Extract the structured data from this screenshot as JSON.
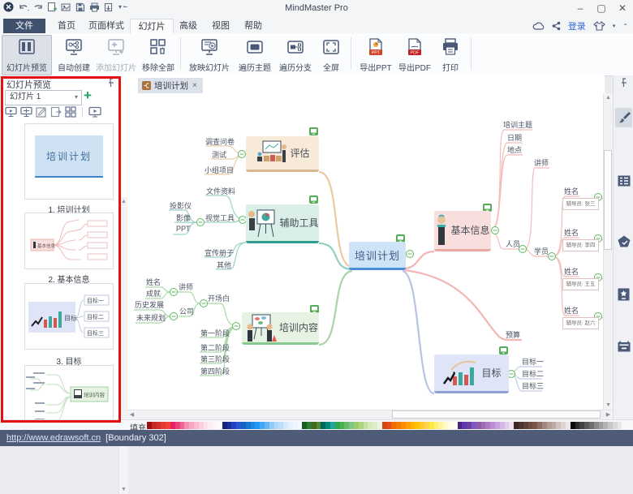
{
  "window": {
    "title": "MindMaster Pro",
    "minimize": "–",
    "maximize": "▢",
    "close": "✕"
  },
  "menu": {
    "file": "文件",
    "tabs": [
      "首页",
      "页面样式",
      "幻灯片",
      "高级",
      "视图",
      "帮助"
    ],
    "login": "登录"
  },
  "ribbon": {
    "preview": "幻灯片预览",
    "auto_create": "自动创建",
    "add_slide": "添加幻灯片",
    "remove_all": "移除全部",
    "play": "放映幻灯片",
    "traverse_topic": "遍历主题",
    "traverse_branch": "遍历分支",
    "fullscreen": "全屏",
    "export_ppt": "导出PPT",
    "export_pdf": "导出PDF",
    "print": "打印",
    "ppt_tag": "PPT",
    "pdf_tag": "PDF"
  },
  "slide_panel": {
    "title": "幻灯片预览",
    "dropdown": "幻灯片 1",
    "slide1_caption": "1. 培训计划",
    "slide2_caption": "2. 基本信息",
    "slide3_caption": "3. 目标"
  },
  "doc_tab": {
    "label": "培训计划",
    "close": "×"
  },
  "map": {
    "center": "培训计划",
    "evaluate": {
      "label": "评估",
      "c1": "调查问卷",
      "c2": "测试",
      "c3": "小组项目"
    },
    "tools": {
      "label": "辅助工具",
      "c1": "文件资料",
      "c2": "视觉工具",
      "c2a": "投影仪",
      "c2b": "影像",
      "c2c": "PPT",
      "c3": "宣传册子",
      "c4": "其他"
    },
    "content": {
      "label": "培训内容",
      "c1": "开场白",
      "c1a": "讲师",
      "c1a1": "姓名",
      "c1a2": "成就",
      "c1b": "公司",
      "c1b1": "历史发展",
      "c1b2": "未来规划",
      "c2": "第一阶段",
      "c3": "第二阶段",
      "c4": "第三阶段",
      "c5": "第四阶段"
    },
    "info": {
      "label": "基本信息",
      "c1": "培训主题",
      "c2": "日期",
      "c3": "地点",
      "c4": "人员",
      "c4a": "讲师",
      "c4b": "学员",
      "name": "姓名",
      "t1": "辅导员: 张三",
      "t2": "辅导员: 李四",
      "t3": "辅导员: 王五",
      "t4": "辅导员: 赵六"
    },
    "budget": "预算",
    "goal": {
      "label": "目标",
      "c1": "目标一",
      "c2": "目标二",
      "c3": "目标三"
    }
  },
  "thumbs": {
    "t1_title": "培训计划",
    "t2_center": "基本信息",
    "t3_label": "目标",
    "t3_c1": "目标一",
    "t3_c2": "目标二",
    "t3_c3": "目标三",
    "t4_label": "培训内容"
  },
  "palette": {
    "label": "填充",
    "colors": [
      "#9c1212",
      "#c62828",
      "#d32f2f",
      "#e53935",
      "#f44336",
      "#e91e63",
      "#ec407a",
      "#f06292",
      "#f48fb1",
      "#f8a6c5",
      "#f8bbd0",
      "#fbcfdd",
      "#fce3ec",
      "#fdeef3",
      "#fef5f8",
      "#fff8fa",
      "#16237e",
      "#1a2f9e",
      "#2141c4",
      "#2a52d4",
      "#1565c0",
      "#1976d2",
      "#1e88e5",
      "#2196f3",
      "#42a5f5",
      "#64b5f6",
      "#90caf9",
      "#aed6fa",
      "#bbdefb",
      "#d4e9fc",
      "#e3f2fd",
      "#eef7fe",
      "#f6fbff",
      "#1b5e20",
      "#2e7d32",
      "#43691e",
      "#558b2f",
      "#00695c",
      "#00897b",
      "#26a69a",
      "#2faa4f",
      "#4caf50",
      "#66bb6a",
      "#81c784",
      "#9ccc65",
      "#aed581",
      "#c5e1a5",
      "#d7e9b9",
      "#dcedc8",
      "#ecf5dd",
      "#d84315",
      "#e64a19",
      "#ef6c00",
      "#f57c00",
      "#fb8c00",
      "#ffa000",
      "#ffb300",
      "#ffc107",
      "#ffca28",
      "#ffd54f",
      "#ffeb3b",
      "#fff176",
      "#fff59d",
      "#fff9c4",
      "#fffde7",
      "#fffef5",
      "#4a257e",
      "#5e35b1",
      "#6a3f9e",
      "#7e57c2",
      "#8e5ba8",
      "#9c6bb5",
      "#ab7ac2",
      "#ba8ed1",
      "#c8a2de",
      "#d6b6e6",
      "#e4cbee",
      "#f0e0f5",
      "#3e2723",
      "#4e342e",
      "#5d4037",
      "#6d4c41",
      "#795548",
      "#8d6e63",
      "#a1887f",
      "#b39d94",
      "#bcaaa4",
      "#cfc2bc",
      "#ddd4d0",
      "#ece7e4",
      "#0a0a0a",
      "#2b2b2b",
      "#424242",
      "#5a5a5a",
      "#6e6e6e",
      "#8a8a8a",
      "#9e9e9e",
      "#b3b3b3",
      "#c6c6c6",
      "#d8d8d8",
      "#e9e9e9",
      "#f8f8f8"
    ]
  },
  "statusbar": {
    "link": "http://www.edrawsoft.cn",
    "info": "[Boundary 302]"
  }
}
